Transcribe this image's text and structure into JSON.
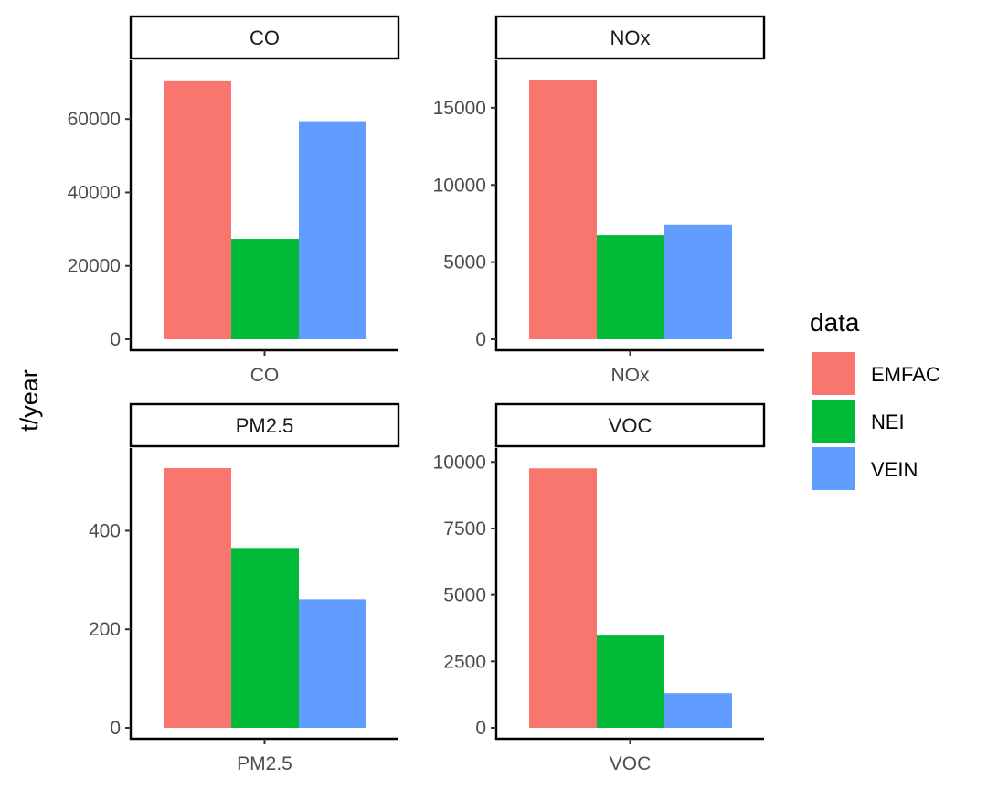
{
  "chart_data": {
    "type": "bar",
    "ylabel": "t/year",
    "legend": {
      "title": "data",
      "placement": "right",
      "entries": [
        {
          "name": "EMFAC",
          "color": "#F8766D"
        },
        {
          "name": "NEI",
          "color": "#00BA38"
        },
        {
          "name": "VEIN",
          "color": "#619CFF"
        }
      ]
    },
    "grid": false,
    "panels": [
      {
        "strip": "CO",
        "category": "CO",
        "ylim": [
          0,
          74000
        ],
        "yticks": [
          0,
          20000,
          40000,
          60000
        ],
        "ytick_labels": [
          "0",
          "20000",
          "40000",
          "60000"
        ],
        "series": [
          {
            "name": "EMFAC",
            "value": 70300
          },
          {
            "name": "NEI",
            "value": 27400
          },
          {
            "name": "VEIN",
            "value": 59400
          }
        ]
      },
      {
        "strip": "NOx",
        "category": "NOx",
        "ylim": [
          0,
          17600
        ],
        "yticks": [
          0,
          5000,
          10000,
          15000
        ],
        "ytick_labels": [
          "0",
          "5000",
          "10000",
          "15000"
        ],
        "series": [
          {
            "name": "EMFAC",
            "value": 16800
          },
          {
            "name": "NEI",
            "value": 6750
          },
          {
            "name": "VEIN",
            "value": 7420
          }
        ]
      },
      {
        "strip": "PM2.5",
        "category": "PM2.5",
        "ylim": [
          0,
          553
        ],
        "yticks": [
          0,
          200,
          400
        ],
        "ytick_labels": [
          "0",
          "200",
          "400"
        ],
        "series": [
          {
            "name": "EMFAC",
            "value": 527
          },
          {
            "name": "NEI",
            "value": 365
          },
          {
            "name": "VEIN",
            "value": 261
          }
        ]
      },
      {
        "strip": "VOC",
        "category": "VOC",
        "ylim": [
          0,
          10250
        ],
        "yticks": [
          0,
          2500,
          5000,
          7500,
          10000
        ],
        "ytick_labels": [
          "0",
          "2500",
          "5000",
          "7500",
          "10000"
        ],
        "series": [
          {
            "name": "EMFAC",
            "value": 9760
          },
          {
            "name": "NEI",
            "value": 3470
          },
          {
            "name": "VEIN",
            "value": 1300
          }
        ]
      }
    ]
  }
}
